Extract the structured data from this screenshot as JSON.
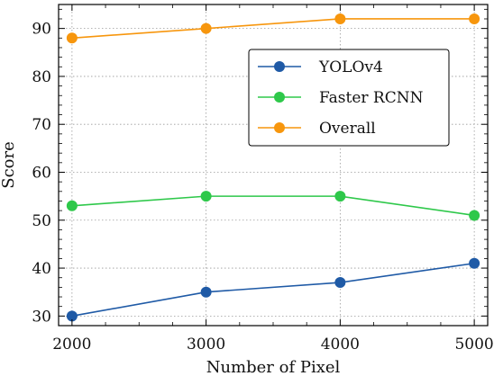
{
  "chart_data": {
    "type": "line",
    "title": "",
    "xlabel": "Number of Pixel",
    "ylabel": "Score",
    "x": [
      2000,
      3000,
      4000,
      5000
    ],
    "xticks": [
      "2000",
      "3000",
      "4000",
      "5000"
    ],
    "xlim": [
      1900,
      5100
    ],
    "yticks": [
      "30",
      "40",
      "50",
      "60",
      "70",
      "80",
      "90"
    ],
    "ylim": [
      28,
      95
    ],
    "grid": true,
    "legend_position": "center-right",
    "series": [
      {
        "name": "YOLOv4",
        "color": "#1f5aa6",
        "values": [
          30,
          35,
          37,
          41
        ]
      },
      {
        "name": "Faster RCNN",
        "color": "#2ec84a",
        "values": [
          53,
          55,
          55,
          51
        ]
      },
      {
        "name": "Overall",
        "color": "#f7960d",
        "values": [
          88,
          90,
          92,
          92
        ]
      }
    ]
  }
}
